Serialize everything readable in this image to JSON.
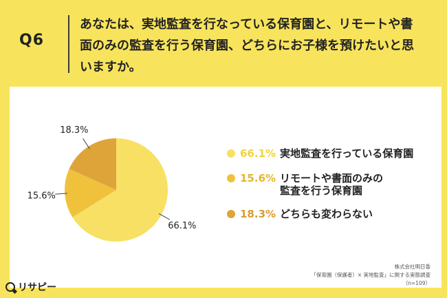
{
  "header": {
    "q_label": "Q6",
    "question": "あなたは、実地監査を行なっている保育園と、リモートや書面のみの監査を行う保育園、どちらにお子様を預けたいと思いますか。"
  },
  "chart_data": {
    "type": "pie",
    "start_angle_deg": 0,
    "direction": "clockwise",
    "slices": [
      {
        "label": "実地監査を行っている保育園",
        "value": 66.1,
        "value_label": "66.1%",
        "color": "#f7e064",
        "text_color": "#f2d43a"
      },
      {
        "label": "リモートや書面のみの\n監査を行う保育園",
        "value": 15.6,
        "value_label": "15.6%",
        "color": "#f0c23c",
        "text_color": "#e7b52c"
      },
      {
        "label": "どちらも変わらない",
        "value": 18.3,
        "value_label": "18.3%",
        "color": "#dea43a",
        "text_color": "#d69c30"
      }
    ]
  },
  "footer": {
    "source_lines": [
      "株式会社明日香",
      "「保育園（保護者）× 実地監査」に関する実態調査",
      "（n=109）"
    ],
    "logo_text": "リサピー"
  }
}
